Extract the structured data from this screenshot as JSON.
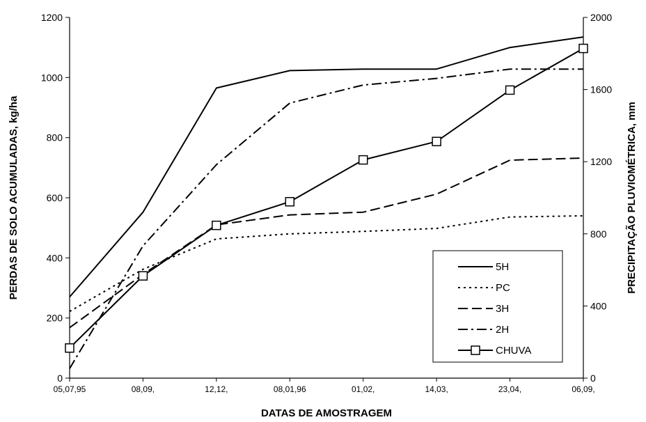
{
  "chart_data": {
    "type": "line",
    "title": "",
    "xlabel": "DATAS DE AMOSTRAGEM",
    "ylabel": "PERDAS DE SOLO ACUMULADAS, kg/ha",
    "y2label": "PRECIPITAÇÃO PLUVIOMÉTRICA, mm",
    "categories": [
      "05,07,95",
      "08,09,",
      "12,12,",
      "08,01,96",
      "01,02,",
      "14,03,",
      "23,04,",
      "06,09,"
    ],
    "ylim": [
      0,
      1200
    ],
    "yticks": [
      0,
      200,
      400,
      600,
      800,
      1000,
      1200
    ],
    "y2lim": [
      0,
      2000
    ],
    "y2ticks": [
      0,
      400,
      800,
      1200,
      1600,
      2000
    ],
    "grid": false,
    "legend_position": "bottom-right",
    "series": [
      {
        "name": "5H",
        "axis": "left",
        "style": "solid",
        "color": "#000000",
        "values": [
          270,
          552,
          965,
          1023,
          1028,
          1028,
          1100,
          1135
        ]
      },
      {
        "name": "PC",
        "axis": "left",
        "style": "dotted",
        "color": "#000000",
        "values": [
          222,
          362,
          463,
          480,
          488,
          498,
          536,
          540
        ]
      },
      {
        "name": "3H",
        "axis": "left",
        "style": "dashed",
        "color": "#000000",
        "values": [
          168,
          345,
          510,
          543,
          552,
          612,
          725,
          732
        ]
      },
      {
        "name": "2H",
        "axis": "left",
        "style": "dashdot",
        "color": "#000000",
        "values": [
          32,
          440,
          710,
          915,
          975,
          997,
          1028,
          1028
        ]
      },
      {
        "name": "CHUVA",
        "axis": "right",
        "style": "solid-square-marker",
        "color": "#000000",
        "values": [
          167,
          567,
          847,
          978,
          1210,
          1312,
          1597,
          1828
        ]
      }
    ]
  }
}
